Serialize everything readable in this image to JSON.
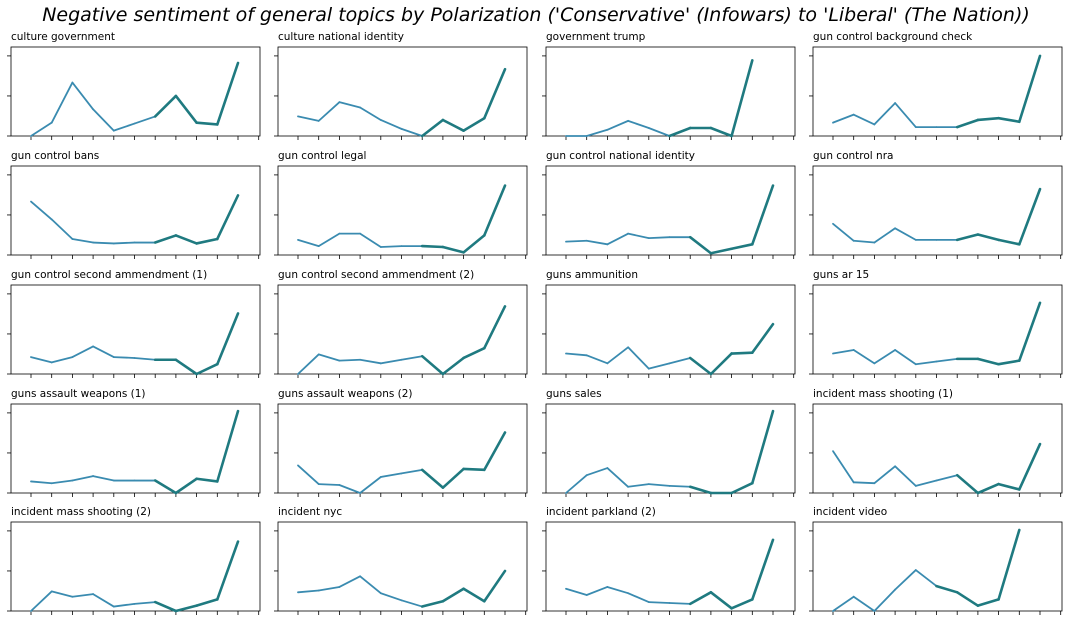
{
  "title": "Negative sentiment of general topics by Polarization ('Conservative' (Infowars) to 'Liberal' (The Nation))",
  "colors": {
    "line_light": "#3a8bb0",
    "line_dark": "#1f7a80",
    "axes": "#000000",
    "background": "#ffffff"
  },
  "chart_data": [
    {
      "type": "line",
      "title": "culture government",
      "values": [
        0.0,
        0.15,
        0.6,
        0.3,
        0.06,
        0.14,
        0.22,
        0.45,
        0.15,
        0.13,
        0.82
      ]
    },
    {
      "type": "line",
      "title": "culture national identity",
      "values": [
        0.22,
        0.17,
        0.38,
        0.32,
        0.18,
        0.08,
        0.0,
        0.18,
        0.06,
        0.2,
        0.75
      ]
    },
    {
      "type": "line",
      "title": "government trump",
      "values": [
        0.0,
        0.0,
        0.07,
        0.17,
        0.09,
        0.0,
        0.09,
        0.09,
        0.0,
        0.85,
        null
      ]
    },
    {
      "type": "line",
      "title": "gun control background check",
      "values": [
        0.15,
        0.24,
        0.13,
        0.37,
        0.1,
        0.1,
        0.1,
        0.18,
        0.2,
        0.16,
        0.9
      ]
    },
    {
      "type": "line",
      "title": "gun control bans",
      "values": [
        0.6,
        0.4,
        0.18,
        0.14,
        0.13,
        0.14,
        0.14,
        0.22,
        0.13,
        0.18,
        0.67
      ]
    },
    {
      "type": "line",
      "title": "gun control legal",
      "values": [
        0.17,
        0.1,
        0.24,
        0.24,
        0.09,
        0.1,
        0.1,
        0.09,
        0.03,
        0.22,
        0.78
      ]
    },
    {
      "type": "line",
      "title": "gun control national identity",
      "values": [
        0.15,
        0.16,
        0.12,
        0.24,
        0.19,
        0.2,
        0.2,
        0.02,
        0.07,
        0.12,
        0.78
      ]
    },
    {
      "type": "line",
      "title": "gun control nra",
      "values": [
        0.35,
        0.16,
        0.14,
        0.3,
        0.17,
        0.17,
        0.17,
        0.23,
        0.17,
        0.12,
        0.74
      ]
    },
    {
      "type": "line",
      "title": "gun control second ammendment (1)",
      "values": [
        0.19,
        0.13,
        0.19,
        0.31,
        0.19,
        0.18,
        0.16,
        0.16,
        0.0,
        0.11,
        0.68
      ]
    },
    {
      "type": "line",
      "title": "gun control second ammendment (2)",
      "values": [
        0.0,
        0.22,
        0.15,
        0.16,
        0.12,
        0.16,
        0.2,
        0.0,
        0.18,
        0.29,
        0.76
      ]
    },
    {
      "type": "line",
      "title": "guns ammunition",
      "values": [
        0.23,
        0.21,
        0.12,
        0.3,
        0.06,
        0.12,
        0.18,
        0.0,
        0.23,
        0.24,
        0.56
      ]
    },
    {
      "type": "line",
      "title": "guns ar 15",
      "values": [
        0.23,
        0.27,
        0.12,
        0.27,
        0.11,
        0.14,
        0.17,
        0.17,
        0.11,
        0.15,
        0.8
      ]
    },
    {
      "type": "line",
      "title": "guns assault weapons (1)",
      "values": [
        0.13,
        0.11,
        0.14,
        0.19,
        0.14,
        0.14,
        0.14,
        0.0,
        0.16,
        0.13,
        0.92
      ]
    },
    {
      "type": "line",
      "title": "guns assault weapons (2)",
      "values": [
        0.31,
        0.1,
        0.09,
        0.0,
        0.18,
        0.22,
        0.26,
        0.06,
        0.27,
        0.26,
        0.68
      ]
    },
    {
      "type": "line",
      "title": "guns sales",
      "values": [
        0.0,
        0.2,
        0.28,
        0.07,
        0.1,
        0.08,
        0.07,
        0.0,
        0.0,
        0.11,
        0.92
      ]
    },
    {
      "type": "line",
      "title": "incident mass shooting (1)",
      "values": [
        0.47,
        0.12,
        0.11,
        0.3,
        0.08,
        0.14,
        0.2,
        0.0,
        0.1,
        0.04,
        0.55
      ]
    },
    {
      "type": "line",
      "title": "incident mass shooting (2)",
      "values": [
        0.0,
        0.22,
        0.16,
        0.19,
        0.05,
        0.08,
        0.1,
        0.0,
        0.06,
        0.13,
        0.78
      ]
    },
    {
      "type": "line",
      "title": "incident nyc",
      "values": [
        0.21,
        0.23,
        0.27,
        0.39,
        0.2,
        0.12,
        0.05,
        0.11,
        0.25,
        0.11,
        0.45
      ]
    },
    {
      "type": "line",
      "title": "incident parkland (2)",
      "values": [
        0.25,
        0.18,
        0.27,
        0.2,
        0.1,
        0.09,
        0.08,
        0.21,
        0.03,
        0.13,
        0.8
      ]
    },
    {
      "type": "line",
      "title": "incident video",
      "values": [
        0.0,
        0.16,
        0.0,
        0.24,
        0.46,
        0.28,
        0.21,
        0.06,
        0.13,
        0.91,
        null
      ]
    }
  ]
}
